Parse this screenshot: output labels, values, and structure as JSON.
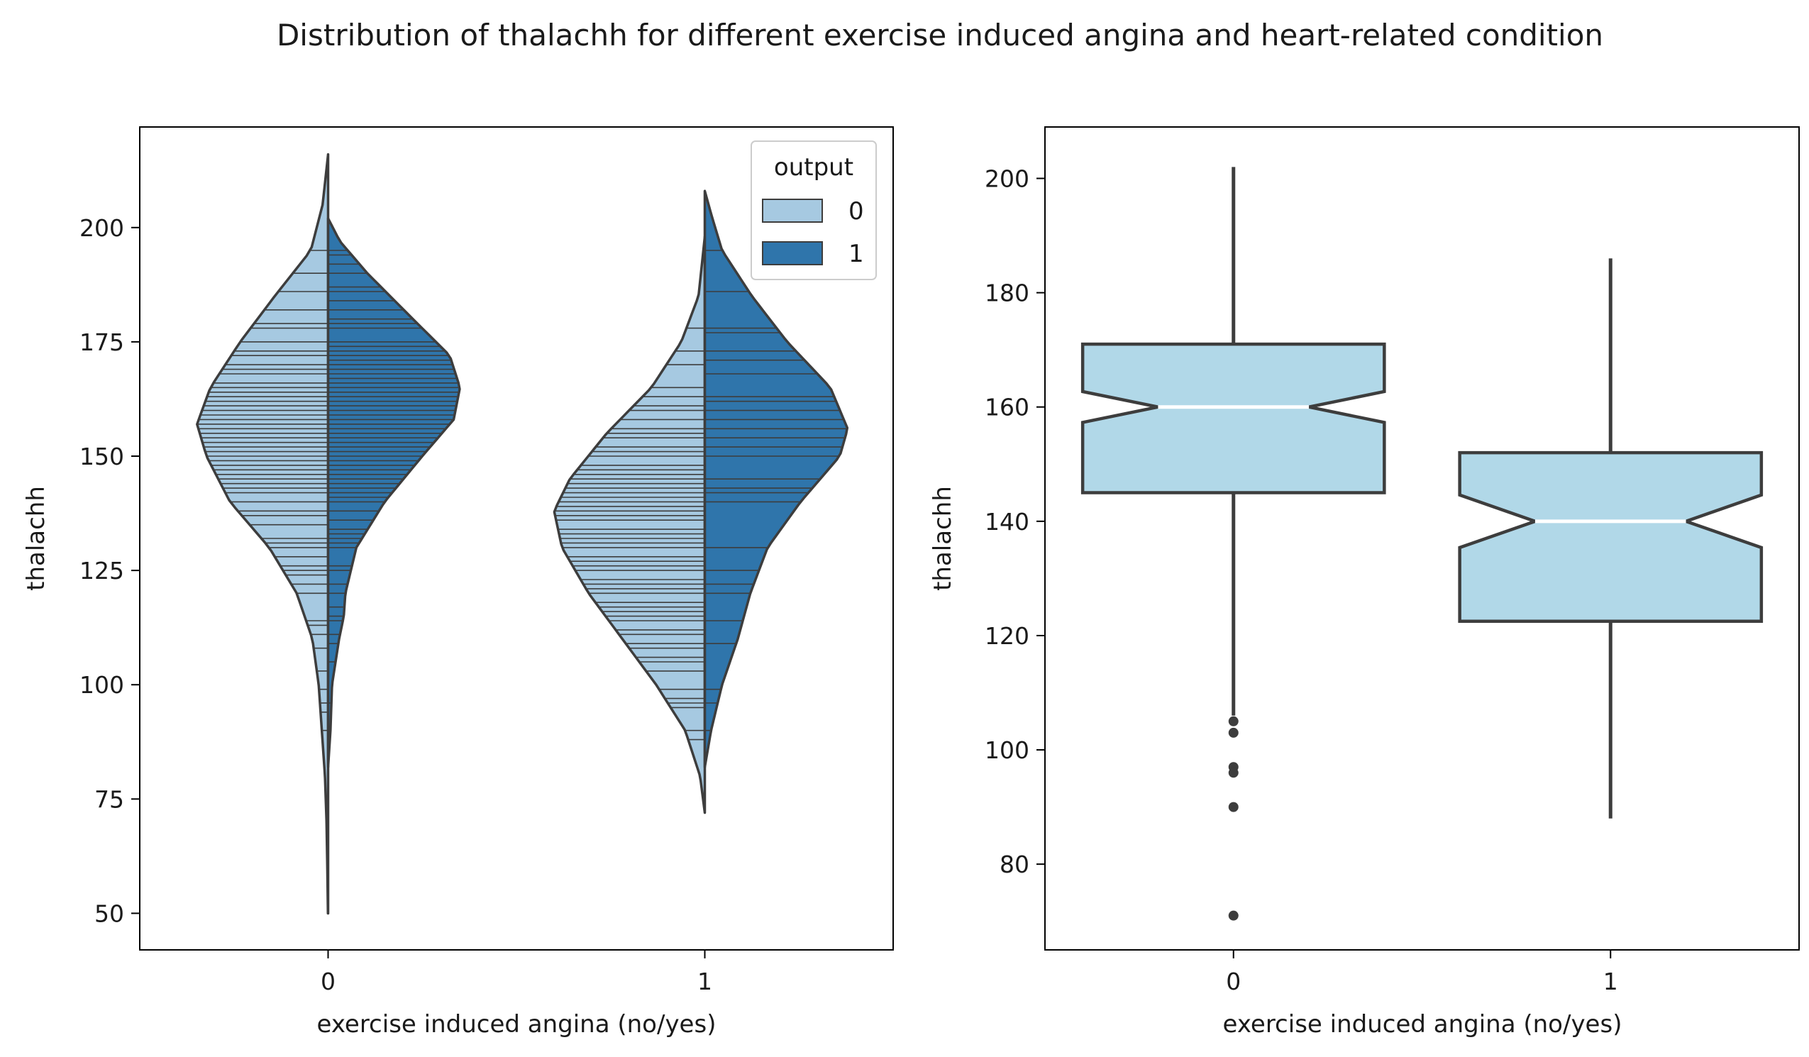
{
  "title": "Distribution of thalachh for different exercise induced angina and heart-related condition",
  "colors": {
    "output_0": "#a6c9e1",
    "output_1": "#2f75ab",
    "box_fill": "#b1d8e8",
    "outline": "#3d3d3d",
    "median": "#ffffff"
  },
  "chart_data": [
    {
      "type": "violin",
      "split_by": "output",
      "inner": "stick",
      "categories": [
        "0",
        "1"
      ],
      "xlabel": "exercise induced angina (no/yes)",
      "ylabel": "thalachh",
      "ylim": [
        42,
        222
      ],
      "yticks": [
        50,
        75,
        100,
        125,
        150,
        175,
        200
      ],
      "legend": {
        "title": "output",
        "position": "top-right",
        "entries": [
          "0",
          "1"
        ]
      },
      "series": [
        {
          "name": "0",
          "groups": [
            {
              "category": "0",
              "extent": [
                50,
                216
              ],
              "density": [
                [
                  50,
                  0.2
                ],
                [
                  60,
                  1
                ],
                [
                  70,
                  2
                ],
                [
                  80,
                  4
                ],
                [
                  90,
                  8
                ],
                [
                  100,
                  12
                ],
                [
                  110,
                  20
                ],
                [
                  120,
                  40
                ],
                [
                  130,
                  75
                ],
                [
                  140,
                  125
                ],
                [
                  150,
                  155
                ],
                [
                  157,
                  167
                ],
                [
                  165,
                  150
                ],
                [
                  175,
                  112
                ],
                [
                  185,
                  68
                ],
                [
                  195,
                  22
                ],
                [
                  205,
                  7
                ],
                [
                  216,
                  0
                ]
              ],
              "sticks": [
                71,
                90,
                94,
                96,
                99,
                103,
                108,
                111,
                113,
                114,
                120,
                122,
                124,
                125,
                126,
                128,
                130,
                131,
                132,
                135,
                137,
                138,
                140,
                142,
                143,
                144,
                145,
                146,
                147,
                148,
                149,
                150,
                151,
                152,
                153,
                154,
                155,
                156,
                157,
                158,
                159,
                160,
                161,
                162,
                163,
                164,
                165,
                166,
                168,
                169,
                170,
                172,
                173,
                175,
                178,
                179,
                182,
                186,
                190,
                195
              ]
            },
            {
              "category": "1",
              "extent": [
                72,
                198
              ],
              "density": [
                [
                  72,
                  0
                ],
                [
                  80,
                  6
                ],
                [
                  90,
                  25
                ],
                [
                  100,
                  62
                ],
                [
                  110,
                  105
                ],
                [
                  120,
                  148
                ],
                [
                  130,
                  182
                ],
                [
                  138,
                  192
                ],
                [
                  145,
                  172
                ],
                [
                  155,
                  125
                ],
                [
                  165,
                  68
                ],
                [
                  175,
                  30
                ],
                [
                  185,
                  8
                ],
                [
                  198,
                  0
                ]
              ],
              "sticks": [
                88,
                90,
                95,
                96,
                97,
                99,
                103,
                105,
                106,
                108,
                109,
                111,
                112,
                114,
                115,
                116,
                117,
                118,
                120,
                121,
                122,
                123,
                125,
                126,
                127,
                128,
                130,
                131,
                132,
                133,
                134,
                136,
                137,
                138,
                139,
                140,
                141,
                142,
                143,
                144,
                145,
                146,
                147,
                148,
                150,
                151,
                152,
                154,
                155,
                156,
                158,
                160,
                161,
                163,
                165,
                170,
                173,
                178
              ]
            }
          ]
        },
        {
          "name": "1",
          "groups": [
            {
              "category": "0",
              "extent": [
                82,
                202
              ],
              "density": [
                [
                  82,
                  0
                ],
                [
                  90,
                  3
                ],
                [
                  100,
                  5
                ],
                [
                  110,
                  14
                ],
                [
                  115,
                  20
                ],
                [
                  120,
                  22
                ],
                [
                  130,
                  36
                ],
                [
                  140,
                  72
                ],
                [
                  150,
                  120
                ],
                [
                  158,
                  160
                ],
                [
                  165,
                  168
                ],
                [
                  172,
                  155
                ],
                [
                  180,
                  108
                ],
                [
                  190,
                  50
                ],
                [
                  197,
                  15
                ],
                [
                  202,
                  0
                ]
              ],
              "sticks": [
                96,
                105,
                109,
                111,
                114,
                115,
                117,
                120,
                122,
                125,
                126,
                130,
                131,
                132,
                133,
                134,
                136,
                138,
                140,
                141,
                142,
                143,
                144,
                145,
                146,
                147,
                148,
                149,
                150,
                151,
                152,
                153,
                154,
                155,
                156,
                157,
                158,
                159,
                160,
                161,
                162,
                163,
                164,
                165,
                166,
                167,
                168,
                169,
                170,
                171,
                172,
                173,
                174,
                175,
                178,
                179,
                180,
                182,
                184,
                186,
                187,
                190,
                192,
                194,
                195,
                202
              ]
            },
            {
              "category": "1",
              "extent": [
                82,
                208
              ],
              "density": [
                [
                  82,
                  0
                ],
                [
                  90,
                  8
                ],
                [
                  100,
                  22
                ],
                [
                  110,
                  42
                ],
                [
                  120,
                  58
                ],
                [
                  130,
                  80
                ],
                [
                  140,
                  122
                ],
                [
                  150,
                  172
                ],
                [
                  156,
                  182
                ],
                [
                  165,
                  160
                ],
                [
                  175,
                  105
                ],
                [
                  185,
                  60
                ],
                [
                  195,
                  22
                ],
                [
                  203,
                  8
                ],
                [
                  208,
                  0
                ]
              ],
              "sticks": [
                82,
                90,
                96,
                99,
                109,
                114,
                120,
                122,
                125,
                130,
                140,
                142,
                143,
                145,
                150,
                152,
                154,
                156,
                158,
                160,
                162,
                163,
                168,
                171,
                173,
                177,
                178,
                186,
                195
              ]
            }
          ]
        }
      ]
    },
    {
      "type": "box",
      "notched": true,
      "categories": [
        "0",
        "1"
      ],
      "xlabel": "exercise induced angina (no/yes)",
      "ylabel": "thalachh",
      "ylim": [
        65,
        209
      ],
      "yticks": [
        80,
        100,
        120,
        140,
        160,
        180,
        200
      ],
      "boxes": [
        {
          "category": "0",
          "q1": 145,
          "median": 160,
          "q3": 171,
          "notch_low": 157.3,
          "notch_high": 162.7,
          "whisker_low": 106,
          "whisker_high": 202,
          "outliers": [
            105,
            103,
            97,
            96,
            90,
            71
          ]
        },
        {
          "category": "1",
          "q1": 122.5,
          "median": 140,
          "q3": 152,
          "notch_low": 135.4,
          "notch_high": 144.6,
          "whisker_low": 88,
          "whisker_high": 186,
          "outliers": []
        }
      ]
    }
  ]
}
